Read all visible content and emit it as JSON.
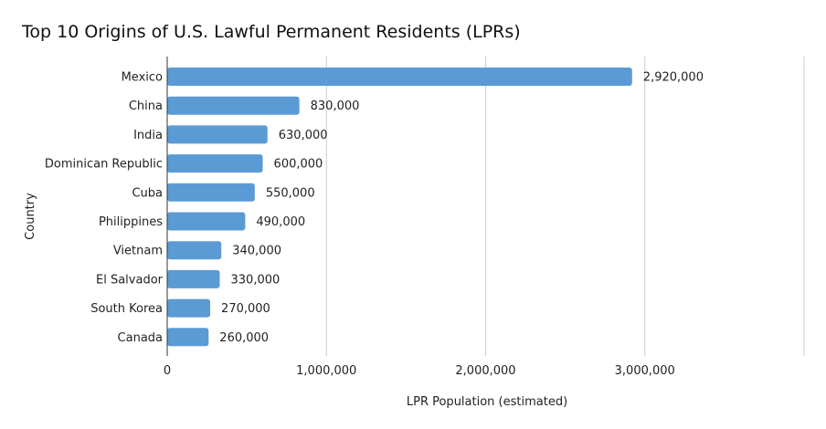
{
  "chart_data": {
    "type": "bar",
    "orientation": "horizontal",
    "title": "Top 10 Origins of U.S. Lawful Permanent Residents (LPRs)",
    "xlabel": "LPR Population (estimated)",
    "ylabel": "Country",
    "categories": [
      "Mexico",
      "China",
      "India",
      "Dominican Republic",
      "Cuba",
      "Philippines",
      "Vietnam",
      "El Salvador",
      "South Korea",
      "Canada"
    ],
    "values": [
      2920000,
      830000,
      630000,
      600000,
      550000,
      490000,
      340000,
      330000,
      270000,
      260000
    ],
    "data_labels": [
      "2,920,000",
      "830,000",
      "630,000",
      "600,000",
      "550,000",
      "490,000",
      "340,000",
      "330,000",
      "270,000",
      "260,000"
    ],
    "xlim": [
      0,
      4000000
    ],
    "x_ticks": [
      0,
      1000000,
      2000000,
      3000000
    ],
    "x_tick_labels": [
      "0",
      "1,000,000",
      "2,000,000",
      "3,000,000"
    ],
    "grid": true,
    "bar_color": "#5b9bd5"
  }
}
